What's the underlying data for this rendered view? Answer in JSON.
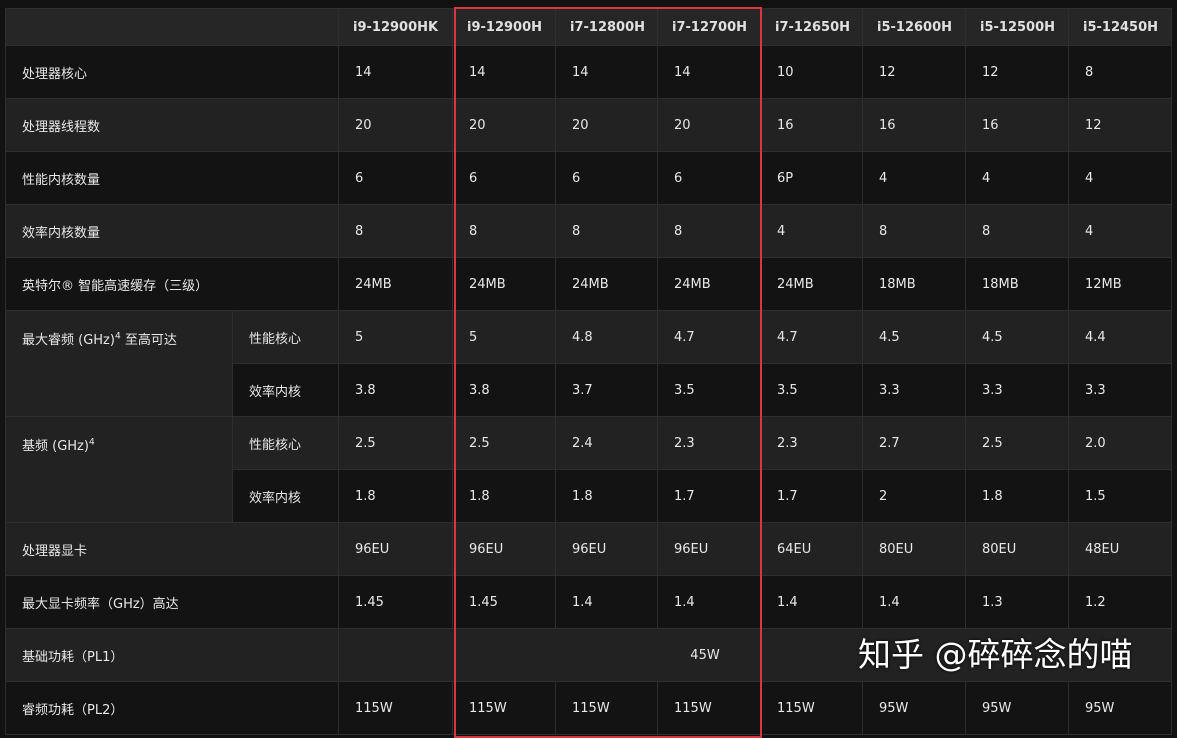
{
  "columns": [
    "i9-12900HK",
    "i9-12900H",
    "i7-12800H",
    "i7-12700H",
    "i7-12650H",
    "i5-12600H",
    "i5-12500H",
    "i5-12450H"
  ],
  "rows": {
    "cores": {
      "label": "处理器核心",
      "values": [
        "14",
        "14",
        "14",
        "14",
        "10",
        "12",
        "12",
        "8"
      ]
    },
    "threads": {
      "label": "处理器线程数",
      "values": [
        "20",
        "20",
        "20",
        "20",
        "16",
        "16",
        "16",
        "12"
      ]
    },
    "pcores": {
      "label": "性能内核数量",
      "values": [
        "6",
        "6",
        "6",
        "6",
        "6P",
        "4",
        "4",
        "4"
      ]
    },
    "ecores": {
      "label": "效率内核数量",
      "values": [
        "8",
        "8",
        "8",
        "8",
        "4",
        "8",
        "8",
        "4"
      ]
    },
    "cache": {
      "label": "英特尔® 智能高速缓存（三级）",
      "values": [
        "24MB",
        "24MB",
        "24MB",
        "24MB",
        "24MB",
        "18MB",
        "18MB",
        "12MB"
      ]
    },
    "turbo": {
      "label": "最大睿频 (GHz)",
      "sup": "4",
      "label_suffix": " 至高可达",
      "p": {
        "label": "性能核心",
        "values": [
          "5",
          "5",
          "4.8",
          "4.7",
          "4.7",
          "4.5",
          "4.5",
          "4.4"
        ]
      },
      "e": {
        "label": "效率内核",
        "values": [
          "3.8",
          "3.8",
          "3.7",
          "3.5",
          "3.5",
          "3.3",
          "3.3",
          "3.3"
        ]
      }
    },
    "base": {
      "label": "基频 (GHz)",
      "sup": "4",
      "p": {
        "label": "性能核心",
        "values": [
          "2.5",
          "2.5",
          "2.4",
          "2.3",
          "2.3",
          "2.7",
          "2.5",
          "2.0"
        ]
      },
      "e": {
        "label": "效率内核",
        "values": [
          "1.8",
          "1.8",
          "1.8",
          "1.7",
          "1.7",
          "2",
          "1.8",
          "1.5"
        ]
      }
    },
    "gpu": {
      "label": "处理器显卡",
      "values": [
        "96EU",
        "96EU",
        "96EU",
        "96EU",
        "64EU",
        "80EU",
        "80EU",
        "48EU"
      ]
    },
    "gpufreq": {
      "label": "最大显卡频率（GHz）高达",
      "values": [
        "1.45",
        "1.45",
        "1.4",
        "1.4",
        "1.4",
        "1.4",
        "1.3",
        "1.2"
      ]
    },
    "pl1": {
      "label": "基础功耗（PL1）",
      "value": "45W"
    },
    "pl2": {
      "label": "睿频功耗（PL2）",
      "values": [
        "115W",
        "115W",
        "115W",
        "115W",
        "115W",
        "95W",
        "95W",
        "95W"
      ]
    }
  },
  "highlight": {
    "columns": [
      "i9-12900H",
      "i7-12800H",
      "i7-12700H"
    ],
    "color": "#d9363e"
  },
  "watermark": "知乎 @碎碎念的喵"
}
